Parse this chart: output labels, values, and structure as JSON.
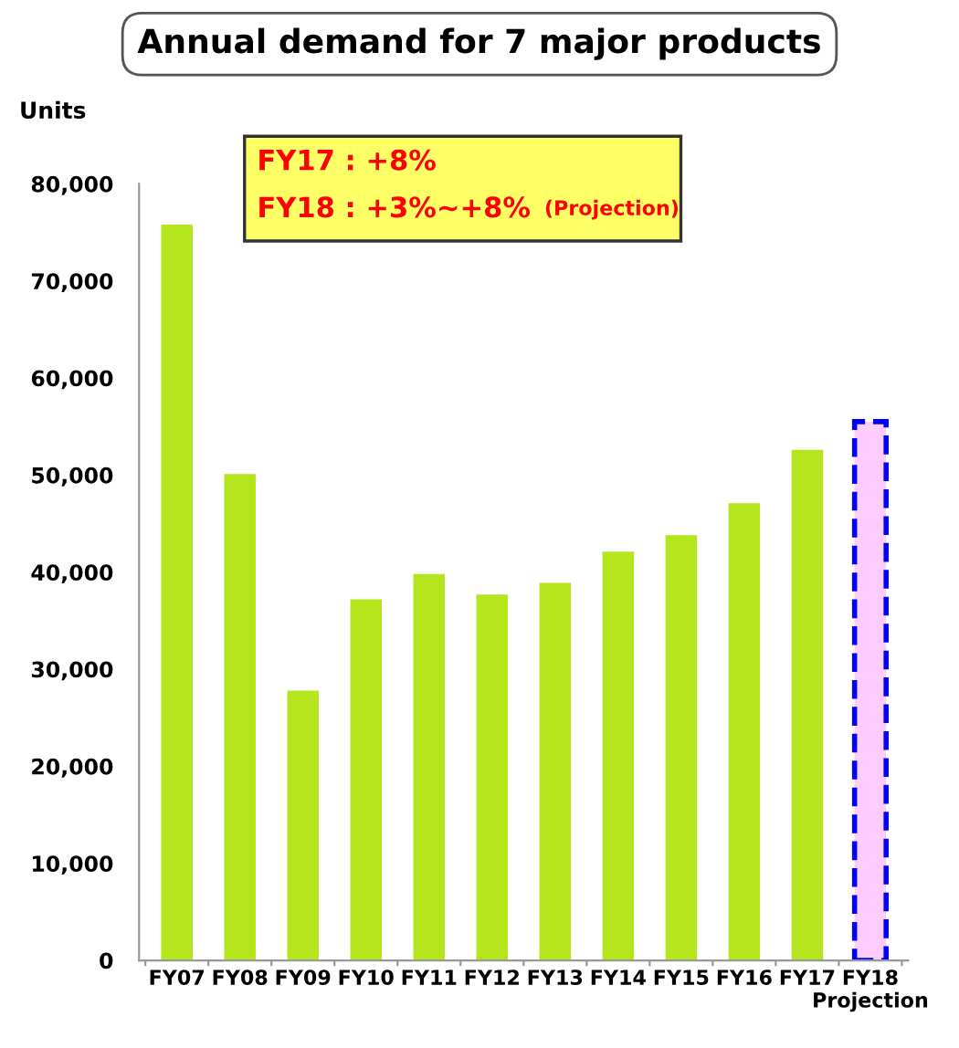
{
  "chart_data": {
    "type": "bar",
    "title": "Annual demand for 7 major products",
    "ylabel": "Units",
    "categories": [
      "FY07",
      "FY08",
      "FY09",
      "FY10",
      "FY11",
      "FY12",
      "FY13",
      "FY14",
      "FY15",
      "FY16",
      "FY17",
      "FY18\nProjection"
    ],
    "series": [
      {
        "color": "#b5e61d",
        "values": [
          75800,
          50100,
          27800,
          37200,
          39800,
          37700,
          38900,
          42100,
          43800,
          47100,
          52600,
          null
        ]
      },
      {
        "color": "#ffccff",
        "line_style": "dashed",
        "values": [
          null,
          null,
          null,
          null,
          null,
          null,
          null,
          null,
          null,
          null,
          null,
          55500
        ]
      }
    ],
    "ylim": [
      0,
      80000
    ],
    "yticks": [
      {
        "value": 0,
        "label": "0"
      },
      {
        "value": 10000,
        "label": "10,000"
      },
      {
        "value": 20000,
        "label": "20,000"
      },
      {
        "value": 30000,
        "label": "30,000"
      },
      {
        "value": 40000,
        "label": "40,000"
      },
      {
        "value": 50000,
        "label": "50,000"
      },
      {
        "value": 60000,
        "label": "60,000"
      },
      {
        "value": 70000,
        "label": "70,000"
      },
      {
        "value": 80000,
        "label": "80,000"
      }
    ],
    "annotations": [
      "FY17 : +8%",
      "FY18 : +3%~+8%",
      "(Projection)"
    ],
    "grid": false,
    "legend": false
  }
}
